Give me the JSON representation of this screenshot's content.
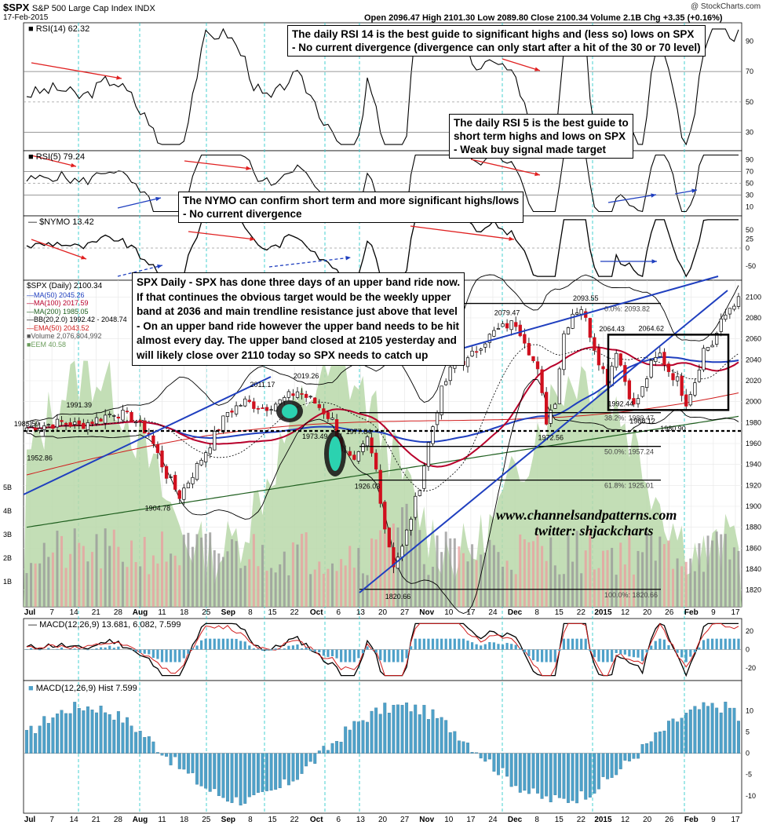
{
  "header": {
    "symbol": "$SPX",
    "name": "S&P 500 Large Cap Index INDX",
    "date": "17-Feb-2015",
    "copyright": "@ StockCharts.com",
    "quote": "Open 2096.47  High 2101.30  Low 2089.80  Close 2100.34  Volume 2.1B  Chg +3.35 (+0.16%)"
  },
  "legends": {
    "rsi14": "RSI(14) 62.32",
    "rsi5": "RSI(5) 79.24",
    "nymo": "$NYMO 13.42",
    "macd": "MACD(12,26,9) 13.681, 6.082, 7.599",
    "hist": "MACD(12,26,9) Hist 7.599",
    "main": [
      "$SPX (Daily) 2100.34",
      "MA(50) 2045.26",
      "MA(100) 2017.59",
      "MA(200) 1985.05",
      "BB(20,2.0) 1992.42 - 2048.74",
      "EMA(50) 2043.52",
      "Volume 2,076,804,992",
      "EEM 40.58"
    ]
  },
  "notes": {
    "rsi14": [
      "The daily RSI 14 is the best guide to significant highs and (less so) lows on SPX",
      "- No current divergence (divergence can only start after a hit of the 30 or 70 level)"
    ],
    "rsi5": [
      "The daily RSI 5 is the best guide to",
      "short term highs and lows on SPX",
      "- Weak buy signal made target"
    ],
    "nymo": [
      "The NYMO can confirm short term and more significant highs/lows",
      "- No current divergence"
    ],
    "spx": [
      "SPX Daily - SPX has done three days of an upper band ride now.",
      "If that continues the obvious target would be the weekly upper",
      "band at 2036 and main trendline resistance just above that level",
      "- On an upper band ride however the upper band needs to be hit",
      "almost every day. The upper band closed at 2105 yesterday and",
      "will likely close over 2110 today so SPX needs to catch up"
    ]
  },
  "watermark": {
    "site": "www.channelsandpatterns.com",
    "twitter": "twitter: shjackcharts"
  },
  "x_axis": {
    "labels": [
      "Jul",
      "7",
      "14",
      "21",
      "28",
      "Aug",
      "11",
      "18",
      "25",
      "Sep",
      "8",
      "15",
      "22",
      "Oct",
      "6",
      "13",
      "20",
      "27",
      "Nov",
      "10",
      "17",
      "24",
      "Dec",
      "8",
      "15",
      "22",
      "2015",
      "12",
      "20",
      "26",
      "Feb",
      "9",
      "17"
    ]
  },
  "chart_data": {
    "type": "line",
    "title": "$SPX S&P 500 Large Cap Index INDX",
    "y_axis_main": {
      "range": [
        1810,
        2110
      ],
      "ticks": [
        1820,
        1840,
        1860,
        1880,
        1900,
        1920,
        1940,
        1960,
        1980,
        2000,
        2020,
        2040,
        2060,
        2080,
        2100
      ]
    },
    "volume_ticks": [
      "1B",
      "2B",
      "3B",
      "4B",
      "5B"
    ],
    "price_points": [
      [
        0,
        1975
      ],
      [
        8,
        1980
      ],
      [
        12,
        1977
      ],
      [
        16,
        1983
      ],
      [
        20,
        1990
      ],
      [
        24,
        1985
      ],
      [
        28,
        1969
      ],
      [
        32,
        1930
      ],
      [
        35,
        1910
      ],
      [
        38,
        1931
      ],
      [
        42,
        1960
      ],
      [
        46,
        1990
      ],
      [
        50,
        2000
      ],
      [
        54,
        1994
      ],
      [
        58,
        2000
      ],
      [
        62,
        2010
      ],
      [
        66,
        1999
      ],
      [
        70,
        1982
      ],
      [
        72,
        1955
      ],
      [
        75,
        1940
      ],
      [
        78,
        1964
      ],
      [
        80,
        1935
      ],
      [
        82,
        1880
      ],
      [
        84,
        1845
      ],
      [
        86,
        1860
      ],
      [
        88,
        1890
      ],
      [
        90,
        1920
      ],
      [
        92,
        1960
      ],
      [
        95,
        2010
      ],
      [
        98,
        2039
      ],
      [
        101,
        2039
      ],
      [
        104,
        2055
      ],
      [
        107,
        2066
      ],
      [
        110,
        2073
      ],
      [
        112,
        2075
      ],
      [
        114,
        2060
      ],
      [
        117,
        2028
      ],
      [
        119,
        1982
      ],
      [
        121,
        2002
      ],
      [
        123,
        2065
      ],
      [
        125,
        2085
      ],
      [
        127,
        2090
      ],
      [
        129,
        2065
      ],
      [
        131,
        2040
      ],
      [
        133,
        2020
      ],
      [
        135,
        2050
      ],
      [
        137,
        2020
      ],
      [
        139,
        1995
      ],
      [
        141,
        2012
      ],
      [
        143,
        2035
      ],
      [
        145,
        2045
      ],
      [
        147,
        2030
      ],
      [
        149,
        2020
      ],
      [
        151,
        2000
      ],
      [
        153,
        2020
      ],
      [
        155,
        2050
      ],
      [
        157,
        2055
      ],
      [
        159,
        2075
      ],
      [
        161,
        2090
      ],
      [
        163,
        2100
      ]
    ],
    "annotations": [
      {
        "text": "1985.59",
        "x": 0,
        "y": 1985.59
      },
      {
        "text": "1991.39",
        "x": 12,
        "y": 1991.39
      },
      {
        "text": "1952.86",
        "x": 3,
        "y": 1952.86
      },
      {
        "text": "1904.78",
        "x": 30,
        "y": 1904.78
      },
      {
        "text": "2011.17",
        "x": 54,
        "y": 2011.17
      },
      {
        "text": "2019.26",
        "x": 64,
        "y": 2019.26
      },
      {
        "text": "1973.49",
        "x": 66,
        "y": 1973.49
      },
      {
        "text": "1977.84",
        "x": 76,
        "y": 1977.84
      },
      {
        "text": "1926.03",
        "x": 78,
        "y": 1926.03
      },
      {
        "text": "1820.66",
        "x": 85,
        "y": 1820.66
      },
      {
        "text": "2079.47",
        "x": 110,
        "y": 2079.47
      },
      {
        "text": "1972.56",
        "x": 120,
        "y": 1972.56
      },
      {
        "text": "2093.55",
        "x": 128,
        "y": 2093.55
      },
      {
        "text": "2064.43",
        "x": 134,
        "y": 2064.43
      },
      {
        "text": "2064.62",
        "x": 143,
        "y": 2064.62
      },
      {
        "text": "1992.44",
        "x": 136,
        "y": 1992.44
      },
      {
        "text": "1988.12",
        "x": 141,
        "y": 1988.12
      },
      {
        "text": "1980.90",
        "x": 148,
        "y": 1980.9
      }
    ],
    "fib_levels": [
      {
        "text": "0.0%: 2093.82",
        "value": 2093.82
      },
      {
        "text": "38.2%: 1989.47",
        "value": 1989.47
      },
      {
        "text": "50.0%: 1957.24",
        "value": 1957.24
      },
      {
        "text": "61.8%: 1925.01",
        "value": 1925.01
      },
      {
        "text": "100.0%: 1820.66",
        "value": 1820.66
      }
    ],
    "rsi14": {
      "range": [
        20,
        100
      ],
      "ticks": [
        30,
        50,
        70,
        90
      ],
      "last": 62.32
    },
    "rsi5": {
      "range": [
        0,
        100
      ],
      "ticks": [
        10,
        30,
        50,
        70,
        90
      ],
      "last": 79.24
    },
    "nymo": {
      "range": [
        -80,
        80
      ],
      "ticks": [
        -50,
        0,
        25,
        50
      ],
      "last": 13.42
    },
    "macd": {
      "range": [
        -30,
        30
      ],
      "ticks": [
        -20,
        0,
        20
      ],
      "macd": 13.681,
      "signal": 6.082,
      "hist": 7.599
    },
    "macd_hist": {
      "range": [
        -13,
        16
      ],
      "ticks": [
        -10,
        -5,
        0,
        5,
        10
      ],
      "last": 7.599
    }
  }
}
